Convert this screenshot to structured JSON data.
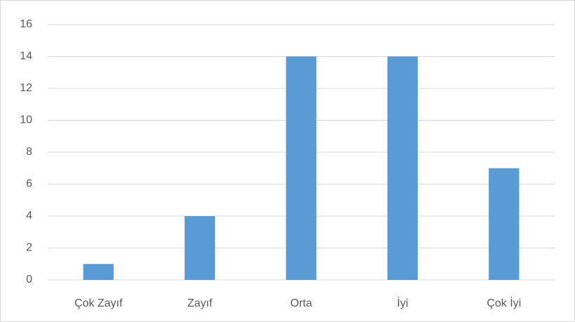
{
  "chart_data": {
    "type": "bar",
    "categories": [
      "Çok Zayıf",
      "Zayıf",
      "Orta",
      "İyi",
      "Çok İyi"
    ],
    "values": [
      1,
      4,
      14,
      14,
      7
    ],
    "color": "#5b9bd5",
    "ylim": [
      0,
      16
    ],
    "yticks": [
      0,
      2,
      4,
      6,
      8,
      10,
      12,
      14,
      16
    ],
    "grid": true
  }
}
